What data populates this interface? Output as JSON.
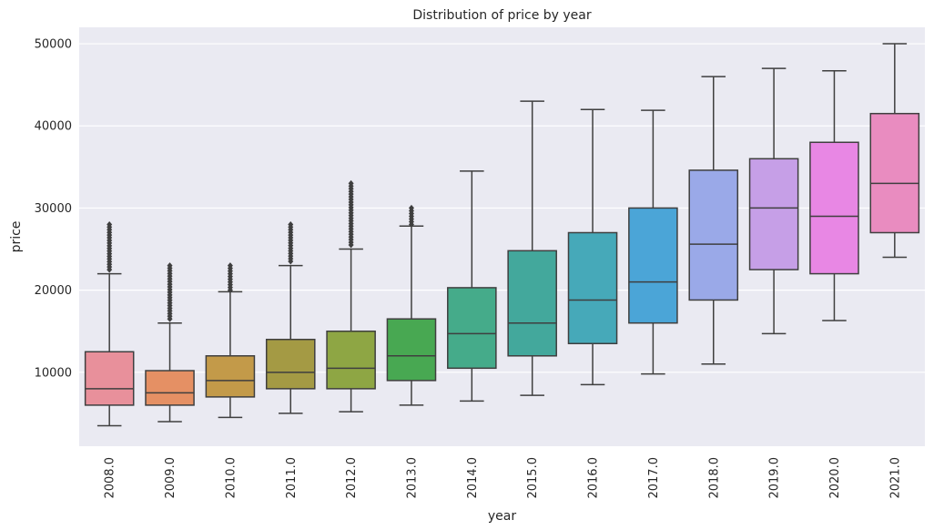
{
  "chart_data": {
    "type": "box",
    "title": "Distribution of price by year",
    "xlabel": "year",
    "ylabel": "price",
    "ylim": [
      1000,
      52000
    ],
    "yticks": [
      10000,
      20000,
      30000,
      40000,
      50000
    ],
    "yticklabels": [
      "10000",
      "20000",
      "30000",
      "40000",
      "50000"
    ],
    "grid": true,
    "categories": [
      "2008.0",
      "2009.0",
      "2010.0",
      "2011.0",
      "2012.0",
      "2013.0",
      "2014.0",
      "2015.0",
      "2016.0",
      "2017.0",
      "2018.0",
      "2019.0",
      "2020.0",
      "2021.0"
    ],
    "boxes": [
      {
        "whislo": 3500,
        "q1": 6000,
        "med": 8000,
        "q3": 12500,
        "whishi": 22000,
        "outlier_range": [
          22500,
          28000
        ],
        "color": "#e8909b"
      },
      {
        "whislo": 4000,
        "q1": 6000,
        "med": 7500,
        "q3": 10200,
        "whishi": 16000,
        "outlier_range": [
          16500,
          23000
        ],
        "color": "#e59064"
      },
      {
        "whislo": 4500,
        "q1": 7000,
        "med": 9000,
        "q3": 12000,
        "whishi": 19800,
        "outlier_range": [
          20000,
          23000
        ],
        "color": "#c39a49"
      },
      {
        "whislo": 5000,
        "q1": 8000,
        "med": 10000,
        "q3": 14000,
        "whishi": 23000,
        "outlier_range": [
          23500,
          28000
        ],
        "color": "#a49a44"
      },
      {
        "whislo": 5200,
        "q1": 8000,
        "med": 10500,
        "q3": 15000,
        "whishi": 25000,
        "outlier_range": [
          25500,
          33000
        ],
        "color": "#8ea644"
      },
      {
        "whislo": 6000,
        "q1": 9000,
        "med": 12000,
        "q3": 16500,
        "whishi": 27800,
        "outlier_range": [
          28000,
          30000
        ],
        "color": "#48a852"
      },
      {
        "whislo": 6500,
        "q1": 10500,
        "med": 14700,
        "q3": 20300,
        "whishi": 34500,
        "outlier_range": [],
        "color": "#45ab8a"
      },
      {
        "whislo": 7200,
        "q1": 12000,
        "med": 16000,
        "q3": 24800,
        "whishi": 43000,
        "outlier_range": [],
        "color": "#43a89c"
      },
      {
        "whislo": 8500,
        "q1": 13500,
        "med": 18800,
        "q3": 27000,
        "whishi": 42000,
        "outlier_range": [],
        "color": "#46a9b9"
      },
      {
        "whislo": 9800,
        "q1": 16000,
        "med": 21000,
        "q3": 30000,
        "whishi": 41900,
        "outlier_range": [],
        "color": "#4ba5d7"
      },
      {
        "whislo": 11000,
        "q1": 18800,
        "med": 25600,
        "q3": 34600,
        "whishi": 46000,
        "outlier_range": [],
        "color": "#9aa9e8"
      },
      {
        "whislo": 14700,
        "q1": 22500,
        "med": 30000,
        "q3": 36000,
        "whishi": 47000,
        "outlier_range": [],
        "color": "#c69fe7"
      },
      {
        "whislo": 16300,
        "q1": 22000,
        "med": 29000,
        "q3": 38000,
        "whishi": 46700,
        "outlier_range": [],
        "color": "#e887e4"
      },
      {
        "whislo": 24000,
        "q1": 27000,
        "med": 33000,
        "q3": 41500,
        "whishi": 50000,
        "outlier_range": [],
        "color": "#e98cc0"
      }
    ]
  },
  "style": {
    "background": "#ffffff",
    "plot_background": "#eaeaf2",
    "grid_color": "#ffffff",
    "line_color": "#3f3f3f",
    "text_color": "#262626"
  }
}
